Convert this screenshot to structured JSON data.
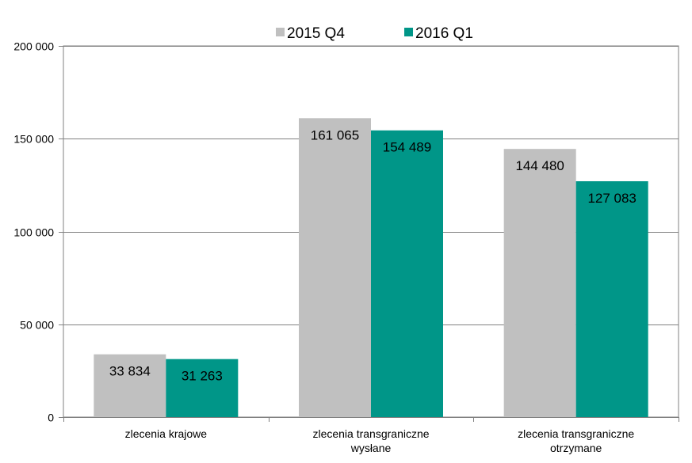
{
  "chart_data": {
    "type": "bar",
    "categories": [
      [
        "zlecenia krajowe"
      ],
      [
        "zlecenia transgraniczne",
        "wysłane"
      ],
      [
        "zlecenia transgraniczne",
        "otrzymane"
      ]
    ],
    "series": [
      {
        "name": "2015 Q4",
        "color": "#c0c0c0",
        "values": [
          33834,
          161065,
          144480
        ],
        "labels": [
          "33 834",
          "161 065",
          "144 480"
        ]
      },
      {
        "name": "2016 Q1",
        "color": "#009688",
        "values": [
          31263,
          154489,
          127083
        ],
        "labels": [
          "31 263",
          "154 489",
          "127 083"
        ]
      }
    ],
    "ylim": [
      0,
      200000
    ],
    "yticks": [
      0,
      50000,
      100000,
      150000,
      200000
    ],
    "ytick_labels": [
      "0",
      "50 000",
      "100 000",
      "150 000",
      "200 000"
    ],
    "grid": true,
    "legend_position": "top"
  }
}
